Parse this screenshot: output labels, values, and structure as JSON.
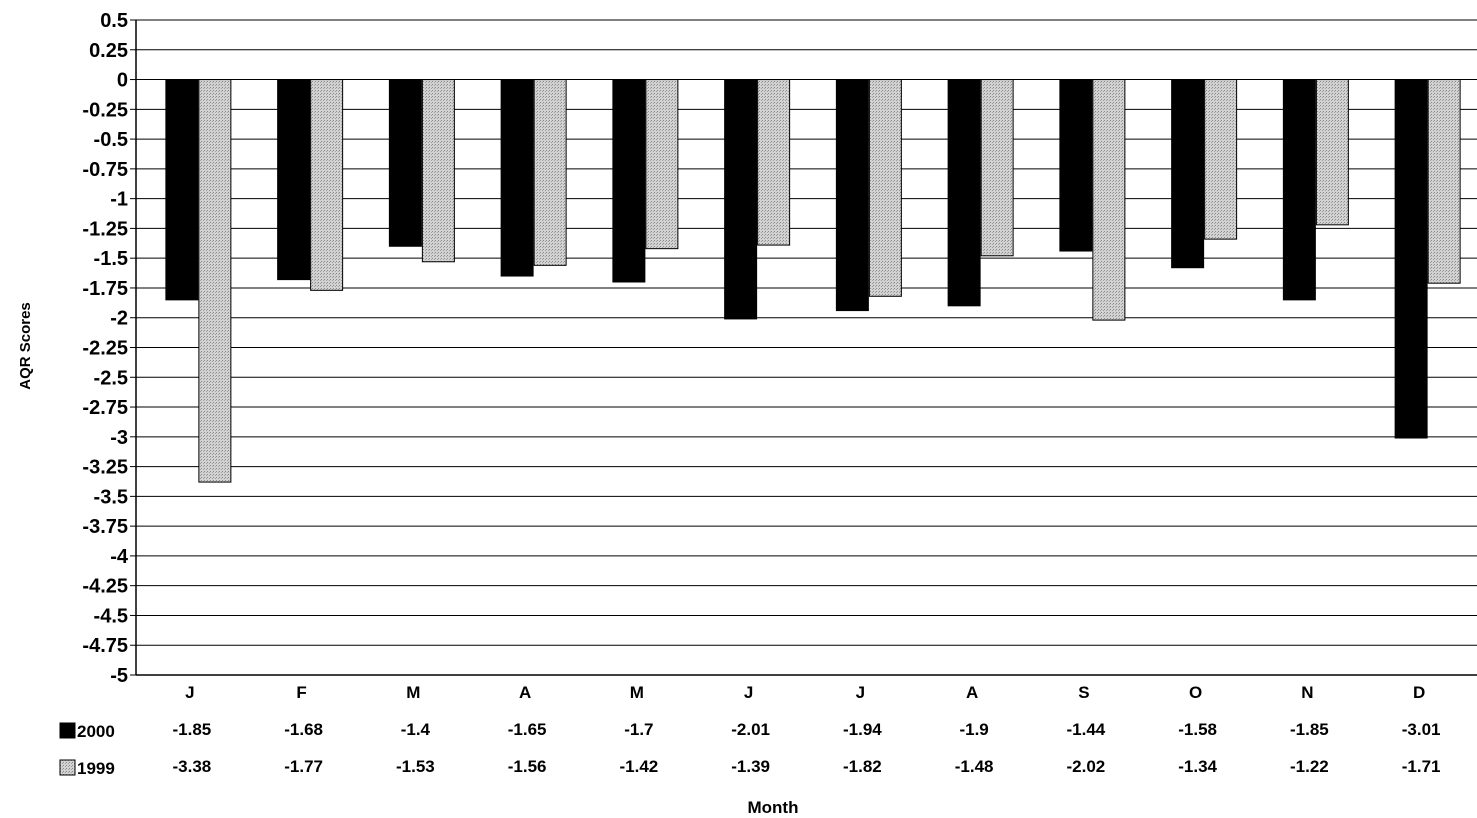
{
  "chart_data": {
    "type": "bar",
    "title": "",
    "xlabel": "Month",
    "ylabel": "AQR Scores",
    "ylim": [
      -5,
      0.5
    ],
    "ytick_step": 0.25,
    "y_ticks": [
      "0.5",
      "0.25",
      "0",
      "-0.25",
      "-0.5",
      "-0.75",
      "-1",
      "-1.25",
      "-1.5",
      "-1.75",
      "-2",
      "-2.25",
      "-2.5",
      "-2.75",
      "-3",
      "-3.25",
      "-3.5",
      "-3.75",
      "-4",
      "-4.25",
      "-4.5",
      "-4.75",
      "-5"
    ],
    "grid": true,
    "legend": "data-table",
    "categories": [
      "J",
      "F",
      "M",
      "A",
      "M",
      "J",
      "J",
      "A",
      "S",
      "O",
      "N",
      "D"
    ],
    "series": [
      {
        "name": "2000",
        "color": "#000000",
        "pattern": "solid",
        "values": [
          -1.85,
          -1.68,
          -1.4,
          -1.65,
          -1.7,
          -2.01,
          -1.94,
          -1.9,
          -1.44,
          -1.58,
          -1.85,
          -3.01
        ],
        "labels": [
          "-1.85",
          "-1.68",
          "-1.4",
          "-1.65",
          "-1.7",
          "-2.01",
          "-1.94",
          "-1.9",
          "-1.44",
          "-1.58",
          "-1.85",
          "-3.01"
        ]
      },
      {
        "name": "1999",
        "color": "#c0c0c0",
        "pattern": "dotted-gray",
        "values": [
          -3.38,
          -1.77,
          -1.53,
          -1.56,
          -1.42,
          -1.39,
          -1.82,
          -1.48,
          -2.02,
          -1.34,
          -1.22,
          -1.71
        ],
        "labels": [
          "-3.38",
          "-1.77",
          "-1.53",
          "-1.56",
          "-1.42",
          "-1.39",
          "-1.82",
          "-1.48",
          "-2.02",
          "-1.34",
          "-1.22",
          "-1.71"
        ]
      }
    ]
  }
}
